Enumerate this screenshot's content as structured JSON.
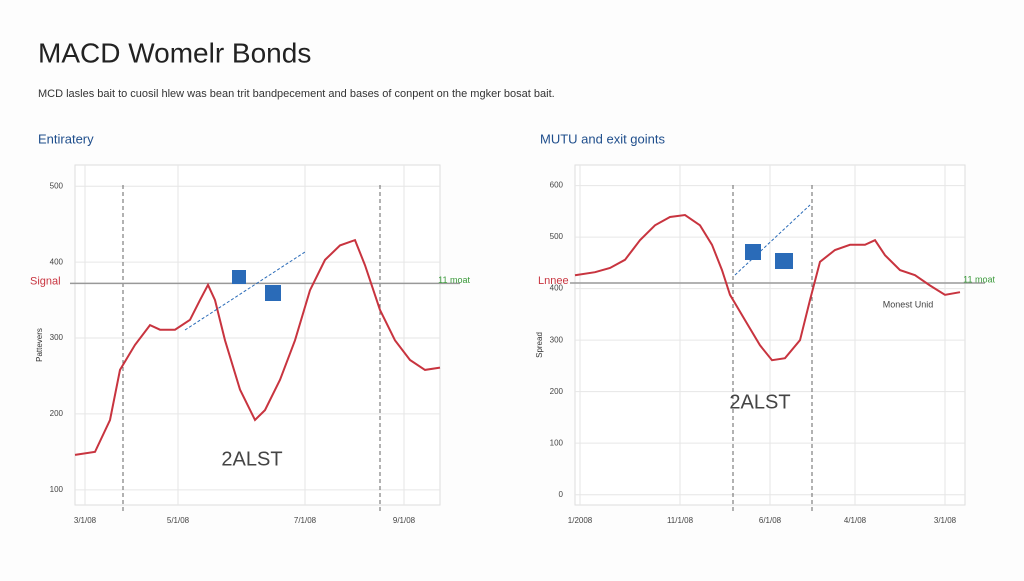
{
  "title": "MACD Womelr Bonds",
  "subtitle": "MCD lasles bait to cuosil hlew was bean trit bandpecement and bases of conpent on the mgker bosat bait.",
  "chart_data": [
    {
      "type": "line",
      "title": "Entiratery",
      "ylabel": "Pattevers",
      "grid": true,
      "x": [
        0,
        20,
        35,
        45,
        60,
        75,
        85,
        100,
        115,
        125,
        133,
        140,
        150,
        165,
        180,
        190,
        205,
        220,
        235,
        250,
        265,
        280,
        290,
        305,
        320,
        335,
        350,
        365
      ],
      "series": [
        {
          "color": "#c8343f",
          "values": [
            146,
            150,
            192,
            258,
            291,
            317,
            311,
            311,
            324,
            350,
            370,
            350,
            297,
            232,
            192,
            205,
            245,
            297,
            363,
            403,
            422,
            429,
            396,
            337,
            297,
            271,
            258,
            261
          ]
        }
      ],
      "xlim": [
        0,
        365
      ],
      "ylim": [
        80,
        528
      ],
      "xticks": [
        {
          "value": 10,
          "label": "3/1/08"
        },
        {
          "value": 103,
          "label": "5/1/08"
        },
        {
          "value": 230,
          "label": "7/1/08"
        },
        {
          "value": 329,
          "label": "9/1/08"
        }
      ],
      "yticks": [
        100,
        200,
        300,
        400,
        500
      ],
      "vlines": [
        48,
        305
      ],
      "hline": {
        "value": 372,
        "label": "Signal",
        "right_label": "11 moat"
      },
      "annotations": [
        "2ALST"
      ]
    },
    {
      "type": "line",
      "title": "MUTU and exit goints",
      "ylabel": "Spread",
      "grid": true,
      "x": [
        0,
        20,
        35,
        50,
        65,
        80,
        95,
        110,
        125,
        137,
        147,
        155,
        170,
        185,
        197,
        210,
        225,
        235,
        245,
        260,
        275,
        290,
        300,
        310,
        325,
        340,
        355,
        370,
        385
      ],
      "series": [
        {
          "color": "#c8343f",
          "values": [
            426,
            432,
            440,
            456,
            494,
            523,
            539,
            543,
            523,
            485,
            436,
            388,
            339,
            290,
            261,
            265,
            300,
            378,
            452,
            475,
            485,
            485,
            494,
            465,
            436,
            426,
            406,
            388,
            393
          ]
        }
      ],
      "xlim": [
        0,
        390
      ],
      "ylim": [
        -20,
        640
      ],
      "xticks": [
        {
          "value": 5,
          "label": "1/2008"
        },
        {
          "value": 105,
          "label": "11/1/08"
        },
        {
          "value": 195,
          "label": "6/1/08"
        },
        {
          "value": 280,
          "label": "4/1/08"
        },
        {
          "value": 370,
          "label": "3/1/08"
        }
      ],
      "yticks": [
        0,
        100,
        200,
        300,
        400,
        500,
        600
      ],
      "vlines": [
        158,
        237
      ],
      "hline": {
        "value": 411,
        "label": "Lnnee",
        "right_label": "11 moat"
      },
      "annotations": [
        "2ALST",
        "Monest Unid"
      ]
    }
  ]
}
